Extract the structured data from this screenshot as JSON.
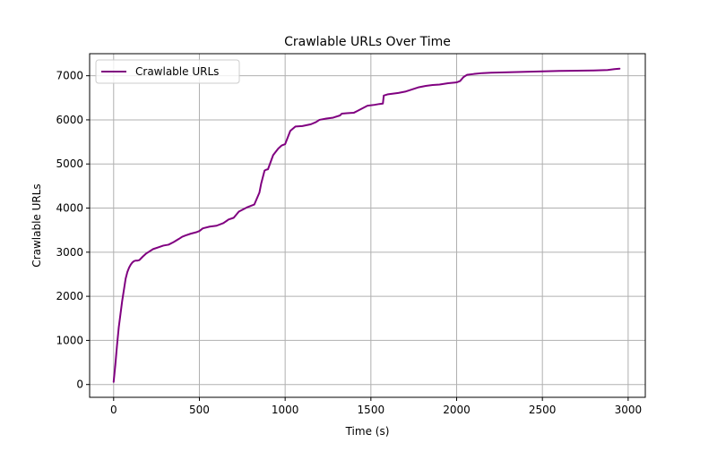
{
  "chart_data": {
    "type": "line",
    "title": "Crawlable URLs Over Time",
    "xlabel": "Time (s)",
    "ylabel": "Crawlable URLs",
    "xlim": [
      -140,
      3100
    ],
    "ylim": [
      -290,
      7500
    ],
    "x_ticks": [
      0,
      500,
      1000,
      1500,
      2000,
      2500,
      3000
    ],
    "y_ticks": [
      0,
      1000,
      2000,
      3000,
      4000,
      5000,
      6000,
      7000
    ],
    "grid": true,
    "legend_position": "top-left",
    "series": [
      {
        "name": "Crawlable URLs",
        "color": "#800080",
        "x": [
          0,
          10,
          20,
          30,
          40,
          50,
          60,
          70,
          80,
          90,
          100,
          110,
          120,
          130,
          140,
          150,
          170,
          190,
          210,
          230,
          260,
          290,
          320,
          350,
          380,
          400,
          420,
          450,
          480,
          500,
          520,
          560,
          600,
          640,
          670,
          700,
          730,
          750,
          780,
          820,
          850,
          860,
          870,
          880,
          890,
          900,
          930,
          960,
          980,
          1000,
          1030,
          1060,
          1100,
          1150,
          1180,
          1200,
          1240,
          1280,
          1320,
          1330,
          1360,
          1400,
          1420,
          1450,
          1480,
          1520,
          1550,
          1570,
          1575,
          1600,
          1640,
          1660,
          1700,
          1740,
          1780,
          1820,
          1860,
          1900,
          1950,
          2000,
          2020,
          2040,
          2060,
          2100,
          2150,
          2200,
          2300,
          2400,
          2500,
          2600,
          2700,
          2800,
          2880,
          2920,
          2950
        ],
        "y": [
          60,
          450,
          900,
          1300,
          1600,
          1900,
          2150,
          2400,
          2550,
          2650,
          2720,
          2770,
          2800,
          2810,
          2810,
          2820,
          2900,
          2970,
          3020,
          3070,
          3110,
          3150,
          3170,
          3230,
          3300,
          3350,
          3380,
          3420,
          3450,
          3480,
          3540,
          3580,
          3600,
          3660,
          3740,
          3780,
          3920,
          3960,
          4020,
          4080,
          4350,
          4550,
          4700,
          4850,
          4870,
          4880,
          5200,
          5350,
          5420,
          5450,
          5750,
          5850,
          5860,
          5900,
          5950,
          6000,
          6030,
          6050,
          6100,
          6140,
          6150,
          6160,
          6200,
          6260,
          6320,
          6340,
          6360,
          6370,
          6550,
          6580,
          6600,
          6610,
          6640,
          6690,
          6740,
          6770,
          6790,
          6800,
          6830,
          6850,
          6880,
          6970,
          7020,
          7040,
          7060,
          7070,
          7080,
          7090,
          7100,
          7110,
          7115,
          7120,
          7130,
          7150,
          7160
        ]
      }
    ]
  }
}
